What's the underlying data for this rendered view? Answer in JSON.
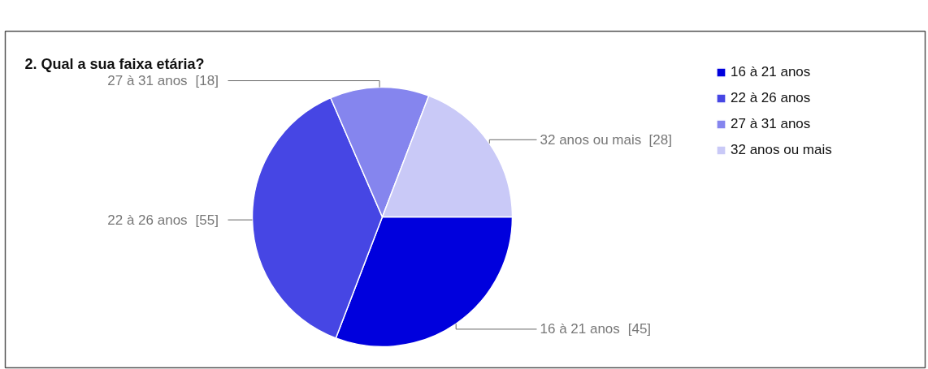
{
  "chart_data": {
    "type": "pie",
    "title": "2. Qual a sua faixa etária?",
    "categories": [
      "16 à 21 anos",
      "22 à 26 anos",
      "27 à 31 anos",
      "32 anos ou mais"
    ],
    "values": [
      45,
      55,
      18,
      28
    ],
    "colors": [
      "#0000dd",
      "#4646e4",
      "#8585ee",
      "#c9c9f7"
    ],
    "value_labels": [
      "[45]",
      "[55]",
      "[18]",
      "[28]"
    ],
    "legend": "right"
  }
}
